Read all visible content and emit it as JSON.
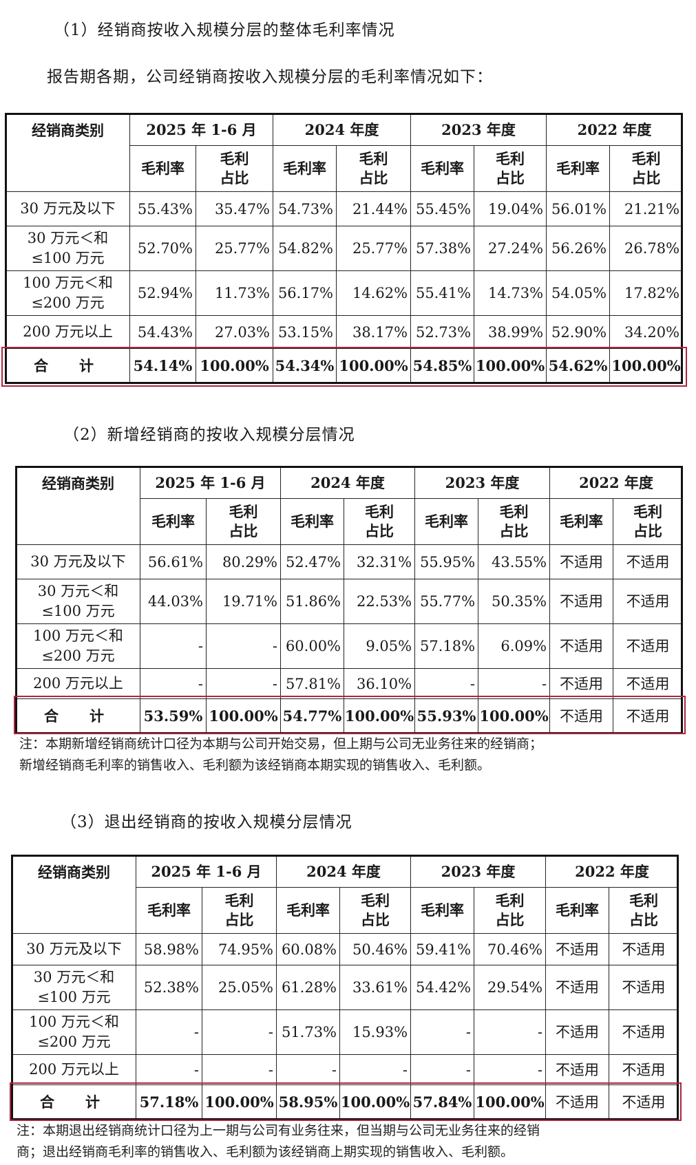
{
  "labels": {
    "category": "经销商类别",
    "gross_margin": "毛利率",
    "share_line1": "毛利",
    "share_line2": "占比"
  },
  "periods": [
    "2025 年 1-6 月",
    "2024 年度",
    "2023 年度",
    "2022 年度"
  ],
  "sections": [
    {
      "title": "（1）经销商按收入规模分层的整体毛利率情况",
      "intro": "报告期各期，公司经销商按收入规模分层的毛利率情况如下：",
      "rows": [
        {
          "label": [
            "30 万元及以下"
          ],
          "values": [
            "55.43%",
            "35.47%",
            "54.73%",
            "21.44%",
            "55.45%",
            "19.04%",
            "56.01%",
            "21.21%"
          ]
        },
        {
          "label": [
            "30 万元＜和",
            "≤100 万元"
          ],
          "values": [
            "52.70%",
            "25.77%",
            "54.82%",
            "25.77%",
            "57.38%",
            "27.24%",
            "56.26%",
            "26.78%"
          ]
        },
        {
          "label": [
            "100 万元＜和",
            "≤200 万元"
          ],
          "values": [
            "52.94%",
            "11.73%",
            "56.17%",
            "14.62%",
            "55.41%",
            "14.73%",
            "54.05%",
            "17.82%"
          ]
        },
        {
          "label": [
            "200 万元以上"
          ],
          "values": [
            "54.43%",
            "27.03%",
            "53.15%",
            "38.17%",
            "52.73%",
            "38.99%",
            "52.90%",
            "34.20%"
          ]
        }
      ],
      "total": {
        "label": "合　计",
        "values": [
          "54.14%",
          "100.00%",
          "54.34%",
          "100.00%",
          "54.85%",
          "100.00%",
          "54.62%",
          "100.00%"
        ]
      }
    },
    {
      "title": "（2）新增经销商的按收入规模分层情况",
      "rows": [
        {
          "label": [
            "30 万元及以下"
          ],
          "values": [
            "56.61%",
            "80.29%",
            "52.47%",
            "32.31%",
            "55.95%",
            "43.55%",
            "不适用",
            "不适用"
          ]
        },
        {
          "label": [
            "30 万元＜和",
            "≤100 万元"
          ],
          "values": [
            "44.03%",
            "19.71%",
            "51.86%",
            "22.53%",
            "55.77%",
            "50.35%",
            "不适用",
            "不适用"
          ]
        },
        {
          "label": [
            "100 万元＜和",
            "≤200 万元"
          ],
          "values": [
            "-",
            "-",
            "60.00%",
            "9.05%",
            "57.18%",
            "6.09%",
            "不适用",
            "不适用"
          ]
        },
        {
          "label": [
            "200 万元以上"
          ],
          "values": [
            "-",
            "-",
            "57.81%",
            "36.10%",
            "-",
            "-",
            "不适用",
            "不适用"
          ]
        }
      ],
      "total": {
        "label": "合　计",
        "values": [
          "53.59%",
          "100.00%",
          "54.77%",
          "100.00%",
          "55.93%",
          "100.00%",
          "不适用",
          "不适用"
        ]
      },
      "note": [
        "注：本期新增经销商统计口径为本期与公司开始交易，但上期与公司无业务往来的经销商；",
        "新增经销商毛利率的销售收入、毛利额为该经销商本期实现的销售收入、毛利额。"
      ]
    },
    {
      "title": "（3）退出经销商的按收入规模分层情况",
      "rows": [
        {
          "label": [
            "30 万元及以下"
          ],
          "values": [
            "58.98%",
            "74.95%",
            "60.08%",
            "50.46%",
            "59.41%",
            "70.46%",
            "不适用",
            "不适用"
          ]
        },
        {
          "label": [
            "30 万元＜和",
            "≤100 万元"
          ],
          "values": [
            "52.38%",
            "25.05%",
            "61.28%",
            "33.61%",
            "54.42%",
            "29.54%",
            "不适用",
            "不适用"
          ]
        },
        {
          "label": [
            "100 万元＜和",
            "≤200 万元"
          ],
          "values": [
            "-",
            "-",
            "51.73%",
            "15.93%",
            "-",
            "-",
            "不适用",
            "不适用"
          ]
        },
        {
          "label": [
            "200 万元以上"
          ],
          "values": [
            "-",
            "-",
            "-",
            "-",
            "-",
            "-",
            "不适用",
            "不适用"
          ]
        }
      ],
      "total": {
        "label": "合　计",
        "values": [
          "57.18%",
          "100.00%",
          "58.95%",
          "100.00%",
          "57.84%",
          "100.00%",
          "不适用",
          "不适用"
        ]
      },
      "note": [
        "注：本期退出经销商统计口径为上一期与公司有业务往来，但当期与公司无业务往来的经销",
        "商；退出经销商毛利率的销售收入、毛利额为该经销商上期实现的销售收入、毛利额。"
      ]
    }
  ]
}
